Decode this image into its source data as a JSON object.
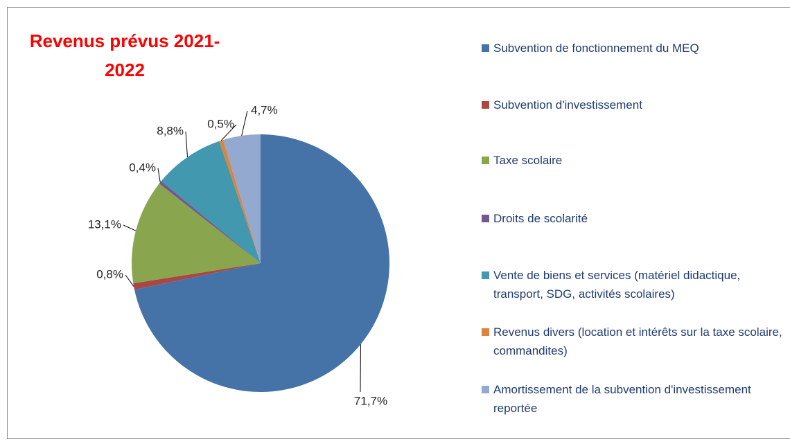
{
  "chart_data": {
    "type": "pie",
    "title": "Revenus prévus 2021-2022",
    "categories": [
      "Subvention de fonctionnement du MEQ",
      "Subvention d'investissement",
      "Taxe scolaire",
      "Droits de scolarité",
      "Vente de biens et services (matériel didactique, transport, SDG, activités scolaires)",
      "Revenus divers (location et intérêts sur la taxe scolaire, commandites)",
      "Amortissement de la subvention d'investissement reportée"
    ],
    "values": [
      71.7,
      0.8,
      13.1,
      0.4,
      8.8,
      0.5,
      4.7
    ],
    "value_labels": [
      "71,7%",
      "0,8%",
      "13,1%",
      "0,4%",
      "8,8%",
      "0,5%",
      "4,7%"
    ],
    "colors": [
      "#4572a7",
      "#aa4643",
      "#89a54e",
      "#71588f",
      "#4198af",
      "#db843d",
      "#93a9cf"
    ],
    "legend": "right"
  }
}
